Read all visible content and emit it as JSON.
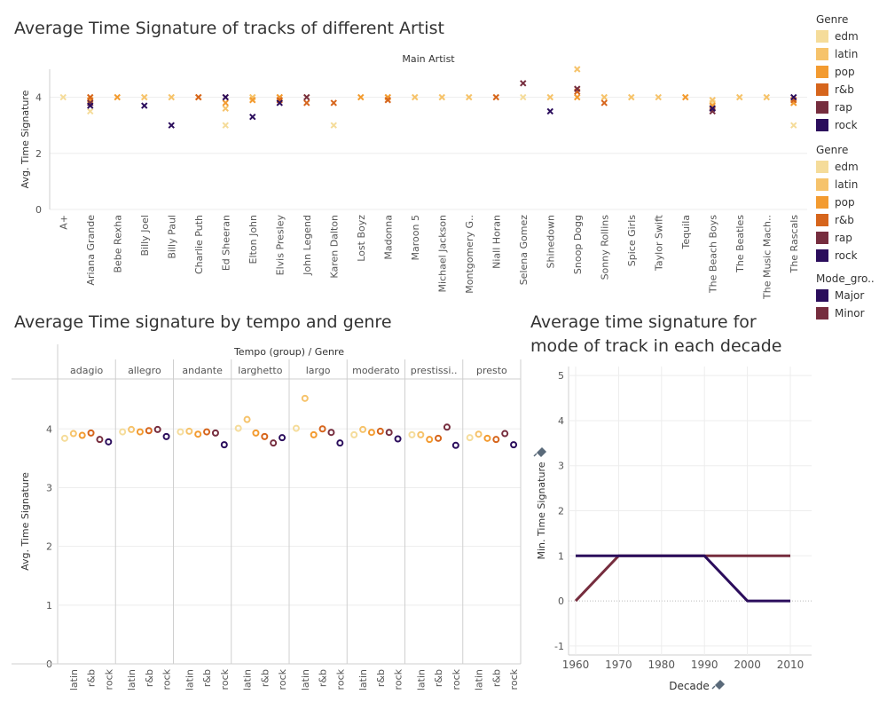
{
  "titles": {
    "top": "Average Time Signature of tracks of different Artist",
    "bottom_left": "Average Time signature by tempo and genre",
    "bottom_right_line1": "Average time signature for",
    "bottom_right_line2": "mode of track in each decade"
  },
  "legends": {
    "genre1": {
      "title": "Genre",
      "items": [
        {
          "label": "edm",
          "color": "#f5dc9a"
        },
        {
          "label": "latin",
          "color": "#f6c36b"
        },
        {
          "label": "pop",
          "color": "#f39b30"
        },
        {
          "label": "r&b",
          "color": "#d6651c"
        },
        {
          "label": "rap",
          "color": "#762d3e"
        },
        {
          "label": "rock",
          "color": "#2b0d5c"
        }
      ]
    },
    "genre2": {
      "title": "Genre",
      "items": [
        {
          "label": "edm",
          "color": "#f5dc9a"
        },
        {
          "label": "latin",
          "color": "#f6c36b"
        },
        {
          "label": "pop",
          "color": "#f39b30"
        },
        {
          "label": "r&b",
          "color": "#d6651c"
        },
        {
          "label": "rap",
          "color": "#762d3e"
        },
        {
          "label": "rock",
          "color": "#2b0d5c"
        }
      ]
    },
    "mode": {
      "title": "Mode_gro..",
      "items": [
        {
          "label": "Major",
          "color": "#2b0d5c"
        },
        {
          "label": "Minor",
          "color": "#762d3e"
        }
      ]
    }
  },
  "chart_data": [
    {
      "type": "scatter",
      "title": "Average Time Signature of tracks of different Artist",
      "header": "Main Artist",
      "ylabel": "Avg. Time Signature",
      "ylim": [
        0,
        5
      ],
      "yticks": [
        0,
        2,
        4
      ],
      "marker": "x",
      "categories": [
        "A+",
        "Ariana Grande",
        "Bebe Rexha",
        "Billy Joel",
        "Billy Paul",
        "Charlie Puth",
        "Ed Sheeran",
        "Elton John",
        "Elvis Presley",
        "John Legend",
        "Karen Dalton",
        "Lost Boyz",
        "Madonna",
        "Maroon 5",
        "Michael Jackson",
        "Montgomery G..",
        "Niall Horan",
        "Selena Gomez",
        "Shinedown",
        "Snoop Dogg",
        "Sonny Rollins",
        "Spice Girls",
        "Taylor Swift",
        "Tequila",
        "The Beach Boys",
        "The Beatles",
        "The Music Mach..",
        "The Rascals"
      ],
      "series": [
        {
          "name": "edm",
          "color": "#f5dc9a",
          "values": [
            4,
            3.5,
            4,
            4,
            4,
            null,
            3,
            4,
            4,
            4,
            3,
            4,
            null,
            4,
            4,
            4,
            null,
            4,
            4,
            4,
            4,
            4,
            null,
            null,
            3.8,
            4,
            4,
            3
          ]
        },
        {
          "name": "latin",
          "color": "#f6c36b",
          "values": [
            null,
            4,
            null,
            4,
            4,
            4,
            3.6,
            4,
            4,
            4,
            null,
            null,
            4,
            4,
            4,
            4,
            4,
            null,
            4,
            5,
            4,
            4,
            4,
            4,
            3.9,
            4,
            4,
            3.8
          ]
        },
        {
          "name": "pop",
          "color": "#f39b30",
          "values": [
            null,
            3.9,
            4,
            null,
            null,
            4,
            3.8,
            3.9,
            4,
            null,
            null,
            4,
            4,
            null,
            null,
            null,
            null,
            null,
            null,
            4,
            null,
            null,
            null,
            4,
            3.7,
            null,
            null,
            3.8
          ]
        },
        {
          "name": "r&b",
          "color": "#d6651c",
          "values": [
            null,
            4,
            null,
            null,
            null,
            4,
            4,
            null,
            3.9,
            3.8,
            3.8,
            null,
            3.9,
            null,
            null,
            null,
            4,
            null,
            null,
            4.2,
            3.8,
            null,
            null,
            null,
            3.6,
            null,
            null,
            3.9
          ]
        },
        {
          "name": "rap",
          "color": "#762d3e",
          "values": [
            null,
            3.8,
            null,
            null,
            null,
            null,
            null,
            null,
            null,
            4,
            null,
            null,
            null,
            null,
            null,
            null,
            null,
            4.5,
            null,
            4.3,
            null,
            null,
            null,
            null,
            3.5,
            null,
            null,
            null
          ]
        },
        {
          "name": "rock",
          "color": "#2b0d5c",
          "values": [
            null,
            3.7,
            null,
            3.7,
            3,
            null,
            4,
            3.3,
            3.8,
            null,
            null,
            null,
            null,
            null,
            null,
            null,
            null,
            null,
            3.5,
            null,
            null,
            null,
            null,
            null,
            3.6,
            null,
            null,
            4
          ]
        }
      ]
    },
    {
      "type": "scatter",
      "title": "Average Time signature by tempo and genre",
      "header": "Tempo (group)  /  Genre",
      "ylabel": "Avg. Time Signature",
      "ylim": [
        0,
        4.85
      ],
      "yticks": [
        0,
        1,
        2,
        3,
        4
      ],
      "marker": "circle",
      "tick_genres": [
        "latin",
        "r&b",
        "rock"
      ],
      "genre_order": [
        "edm",
        "latin",
        "pop",
        "r&b",
        "rap",
        "rock"
      ],
      "genre_colors": [
        "#f5dc9a",
        "#f6c36b",
        "#f39b30",
        "#d6651c",
        "#762d3e",
        "#2b0d5c"
      ],
      "panels": [
        {
          "name": "adagio",
          "values": [
            3.84,
            3.92,
            3.89,
            3.93,
            3.82,
            3.78
          ]
        },
        {
          "name": "allegro",
          "values": [
            3.95,
            3.99,
            3.95,
            3.97,
            3.99,
            3.87
          ]
        },
        {
          "name": "andante",
          "values": [
            3.95,
            3.96,
            3.91,
            3.95,
            3.93,
            3.73
          ]
        },
        {
          "name": "larghetto",
          "values": [
            4.01,
            4.16,
            3.93,
            3.87,
            3.76,
            3.85
          ]
        },
        {
          "name": "largo",
          "values": [
            4.01,
            4.52,
            3.9,
            4.0,
            3.94,
            3.76
          ]
        },
        {
          "name": "moderato",
          "values": [
            3.9,
            3.99,
            3.94,
            3.96,
            3.94,
            3.83
          ]
        },
        {
          "name": "prestissi..",
          "values": [
            3.9,
            3.9,
            3.82,
            3.84,
            4.03,
            3.72
          ]
        },
        {
          "name": "presto",
          "values": [
            3.85,
            3.91,
            3.84,
            3.82,
            3.92,
            3.73
          ]
        }
      ]
    },
    {
      "type": "line",
      "title": "Average time signature for mode of track in each decade",
      "xlabel": "Decade",
      "ylabel": "Min. Time Signature",
      "x": [
        1960,
        1970,
        1980,
        1990,
        2000,
        2010
      ],
      "ylim": [
        -1.2,
        5.2
      ],
      "yticks": [
        -1,
        0,
        1,
        2,
        3,
        4,
        5
      ],
      "series": [
        {
          "name": "Major",
          "color": "#2b0d5c",
          "values": [
            1,
            1,
            1,
            1,
            0,
            0
          ]
        },
        {
          "name": "Minor",
          "color": "#762d3e",
          "values": [
            0,
            1,
            1,
            1,
            1,
            1
          ]
        }
      ]
    }
  ]
}
